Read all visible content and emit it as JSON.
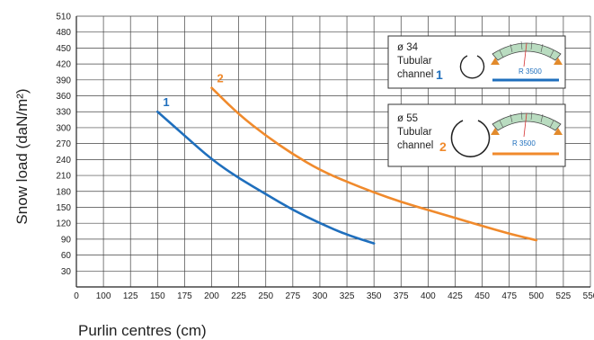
{
  "chart_data": {
    "type": "line",
    "xlabel": "Purlin centres  (cm)",
    "ylabel": "Snow load  (daN/m²)",
    "xlim": [
      0,
      550
    ],
    "ylim": [
      0,
      510
    ],
    "x_ticks": [
      "0",
      "100",
      "125",
      "150",
      "175",
      "200",
      "225",
      "250",
      "275",
      "300",
      "325",
      "350",
      "375",
      "400",
      "425",
      "450",
      "475",
      "500",
      "525",
      "550"
    ],
    "y_ticks": [
      "30",
      "60",
      "90",
      "120",
      "150",
      "180",
      "210",
      "240",
      "270",
      "300",
      "330",
      "360",
      "390",
      "420",
      "450",
      "480",
      "510"
    ],
    "grid": true,
    "legend_position": "top-right",
    "series": [
      {
        "name": "1",
        "color": "#1f6fbd",
        "x": [
          150,
          175,
          200,
          225,
          250,
          275,
          300,
          325,
          350
        ],
        "y": [
          330,
          285,
          240,
          205,
          175,
          145,
          120,
          98,
          82
        ]
      },
      {
        "name": "2",
        "color": "#f08a2c",
        "x": [
          200,
          225,
          250,
          275,
          300,
          325,
          350,
          375,
          400,
          425,
          450,
          475,
          500
        ],
        "y": [
          375,
          325,
          285,
          250,
          220,
          198,
          178,
          160,
          145,
          130,
          115,
          100,
          88
        ]
      }
    ]
  },
  "legend": [
    {
      "diameter": "ø 34",
      "line1": "Tubular",
      "line2": "channel",
      "number": "1",
      "radius": "R 3500",
      "color": "#1f6fbd"
    },
    {
      "diameter": "ø 55",
      "line1": "Tubular",
      "line2": "channel",
      "number": "2",
      "radius": "R 3500",
      "color": "#f08a2c"
    }
  ]
}
